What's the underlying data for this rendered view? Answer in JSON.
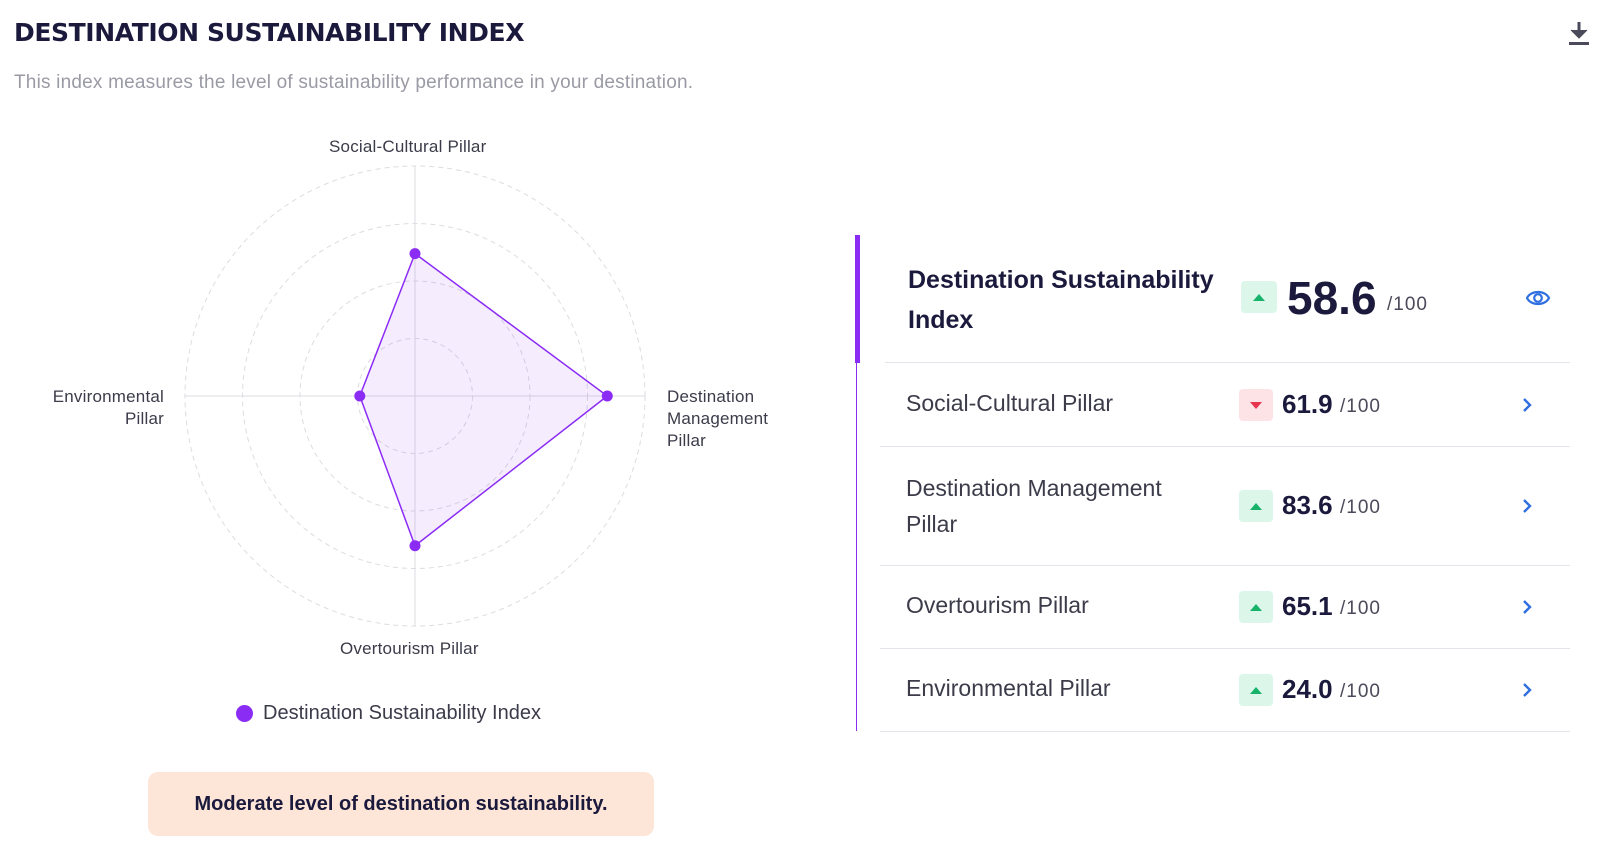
{
  "header": {
    "title": "DESTINATION SUSTAINABILITY INDEX",
    "subtitle": "This index measures the level of sustainability performance in your destination."
  },
  "chart_data": {
    "type": "radar",
    "axes": [
      "Social-Cultural Pillar",
      "Destination Management Pillar",
      "Overtourism Pillar",
      "Environmental Pillar"
    ],
    "series": [
      {
        "name": "Destination Sustainability Index",
        "values": [
          61.9,
          83.6,
          65.1,
          24.0
        ],
        "color": "#8b2cf5"
      }
    ],
    "range": [
      0,
      100
    ],
    "rings": 4,
    "legend": "bottom"
  },
  "axis_labels": {
    "top": "Social-Cultural Pillar",
    "right_1": "Destination",
    "right_2": "Management",
    "right_3": "Pillar",
    "bottom": "Overtourism Pillar",
    "left_1": "Environmental",
    "left_2": "Pillar"
  },
  "legend_label": "Destination Sustainability Index",
  "level_text": "Moderate level of destination sustainability.",
  "summary": {
    "label": "Destination Sustainability Index",
    "value": "58.6",
    "out_of": "/100",
    "trend": "up"
  },
  "pillars": [
    {
      "label": "Social-Cultural Pillar",
      "value": "61.9",
      "out_of": "/100",
      "trend": "down"
    },
    {
      "label": "Destination Management Pillar",
      "value": "83.6",
      "out_of": "/100",
      "trend": "up"
    },
    {
      "label": "Overtourism Pillar",
      "value": "65.1",
      "out_of": "/100",
      "trend": "up"
    },
    {
      "label": "Environmental Pillar",
      "value": "24.0",
      "out_of": "/100",
      "trend": "up"
    }
  ],
  "colors": {
    "accent": "#8b2cf5",
    "trend_up": "#17b36b",
    "trend_down": "#e8344e",
    "link": "#2f6fe0",
    "banner": "#fde6d8"
  },
  "icons": {
    "download": "download-icon",
    "view": "eye-icon",
    "navigate": "chevron-right-icon"
  }
}
